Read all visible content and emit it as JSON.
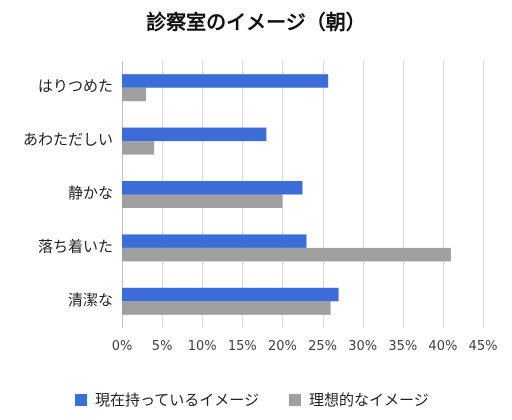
{
  "chart_data": {
    "type": "bar",
    "orientation": "horizontal",
    "title": "診察室のイメージ（朝）",
    "categories": [
      "はりつめた",
      "あわただしい",
      "静かな",
      "落ち着いた",
      "清潔な"
    ],
    "series": [
      {
        "name": "現在持っているイメージ",
        "color": "#3D6DD8",
        "values": [
          25.7,
          18,
          22.5,
          23,
          27
        ]
      },
      {
        "name": "理想的なイメージ",
        "color": "#A0A0A0",
        "values": [
          3,
          4,
          20,
          41,
          26
        ]
      }
    ],
    "xlim": [
      0,
      45
    ],
    "xticks": [
      0,
      5,
      10,
      15,
      20,
      25,
      30,
      35,
      40,
      45
    ],
    "xtick_labels": [
      "0%",
      "5%",
      "10%",
      "15%",
      "20%",
      "25%",
      "30%",
      "35%",
      "40%",
      "45%"
    ],
    "grid": "vertical",
    "legend": "bottom"
  }
}
